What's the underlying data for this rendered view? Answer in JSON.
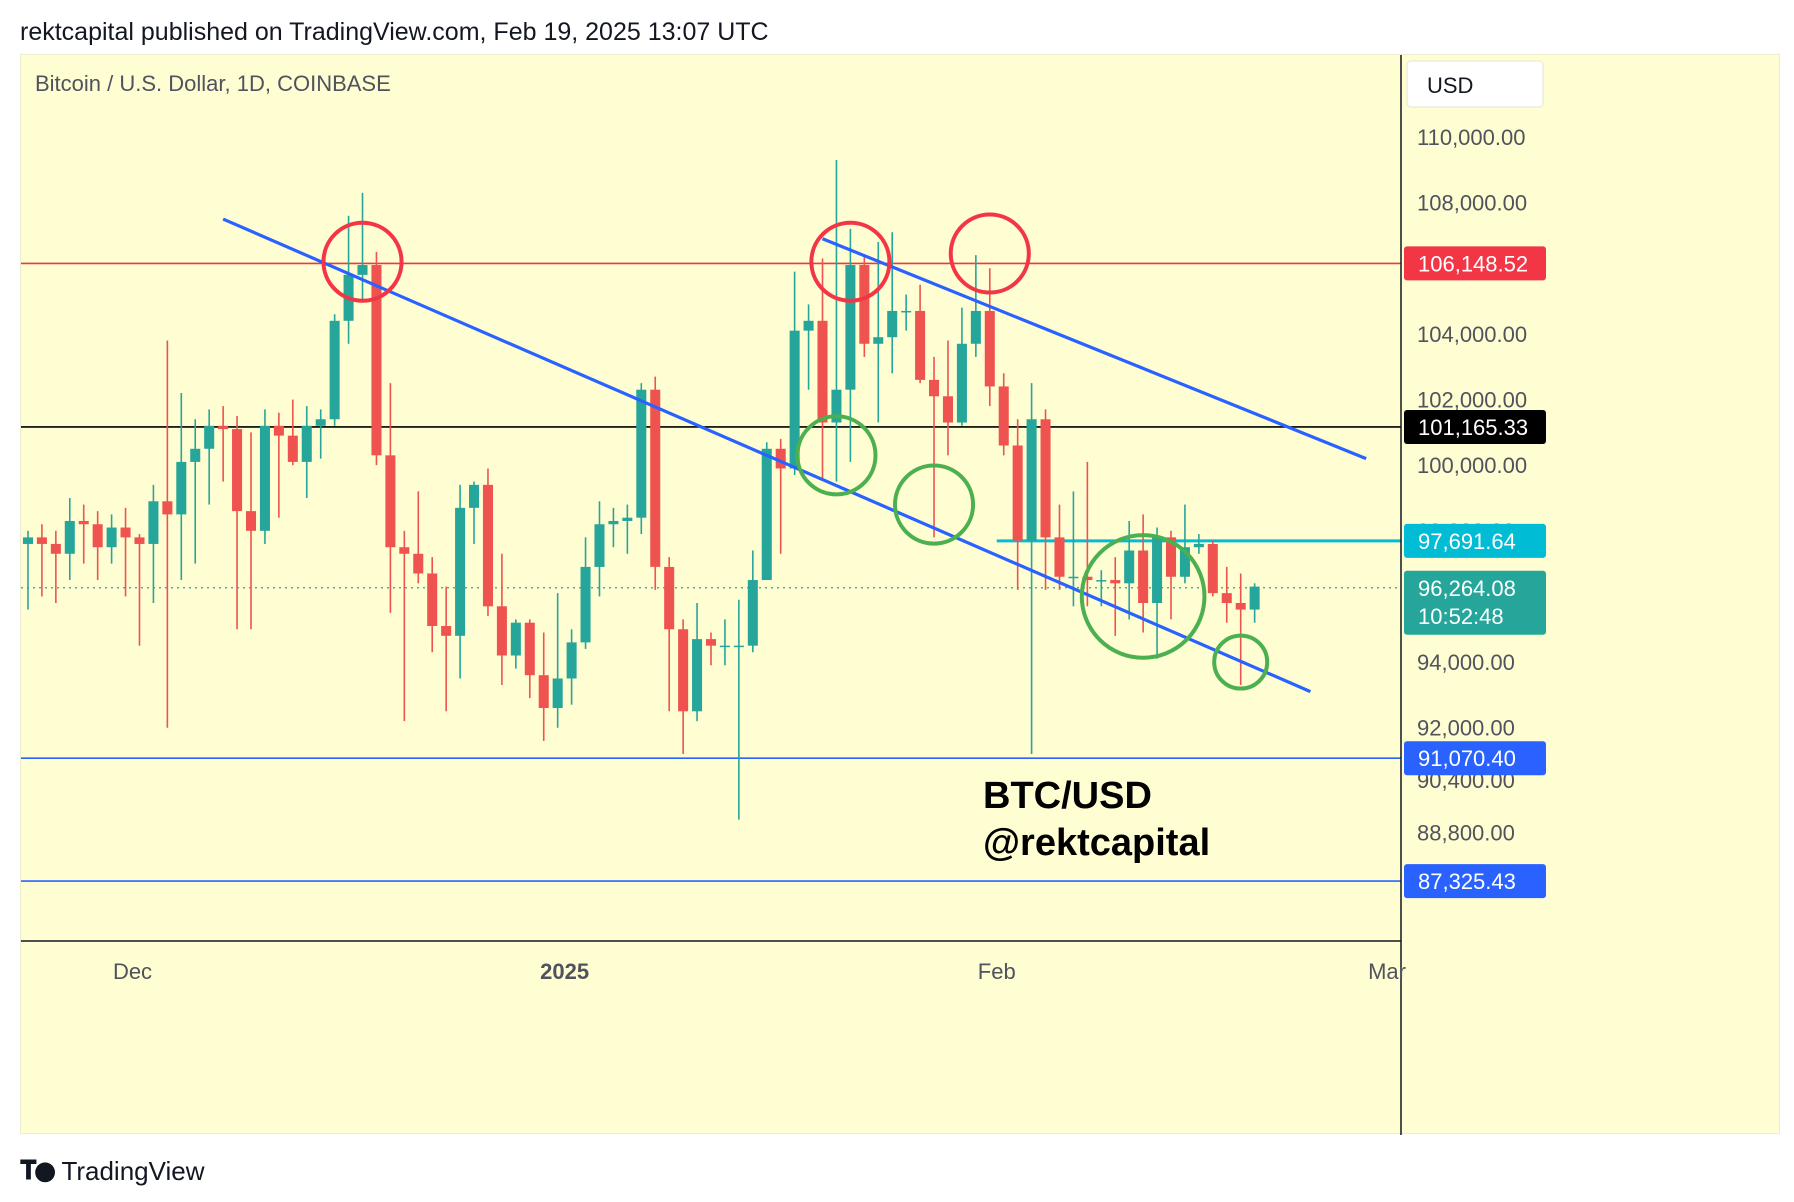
{
  "published_line": "rektcapital published on TradingView.com, Feb 19, 2025 13:07 UTC",
  "footer": {
    "brand": "TradingView",
    "logo_icon": "tradingview-logo-icon"
  },
  "colors": {
    "background": "#fffdd2",
    "bull": "#26a69a",
    "bear": "#ef5350",
    "trendline": "#2962ff",
    "resistance": "#f23645",
    "support_mid": "#000000",
    "cyan_level": "#00bcd4",
    "blue_level": "#2962ff",
    "circle_red": "#f23645",
    "circle_green": "#4caf50"
  },
  "chart_data": {
    "type": "candlestick",
    "title": "Bitcoin / U.S. Dollar, 1D, COINBASE",
    "currency_button": "USD",
    "watermark": [
      "BTC/USD",
      "@rektcapital"
    ],
    "y_axis": {
      "range": [
        85500,
        112500
      ],
      "ticks": [
        {
          "value": 110000,
          "label": "110,000.00"
        },
        {
          "value": 108000,
          "label": "108,000.00"
        },
        {
          "value": 104000,
          "label": "104,000.00"
        },
        {
          "value": 102000,
          "label": "102,000.00"
        },
        {
          "value": 100000,
          "label": "100,000.00"
        },
        {
          "value": 94000,
          "label": "94,000.00"
        },
        {
          "value": 92000,
          "label": "92,000.00"
        },
        {
          "value": 90400,
          "label": "90,400.00"
        },
        {
          "value": 88800,
          "label": "88,800.00"
        }
      ],
      "partial_tick": {
        "value": 98000,
        "label": "98,000.00"
      }
    },
    "x_axis": {
      "range": [
        "2024-11-23",
        "2025-03-02"
      ],
      "labels": [
        {
          "date": "2024-12-01",
          "label": "Dec",
          "bold": false
        },
        {
          "date": "2025-01-01",
          "label": "2025",
          "bold": true
        },
        {
          "date": "2025-02-01",
          "label": "Feb",
          "bold": false
        },
        {
          "date": "2025-03-01",
          "label": "Mar",
          "bold": false
        }
      ]
    },
    "price_labels": [
      {
        "value": 106148.52,
        "label": "106,148.52",
        "color": "#f23645"
      },
      {
        "value": 101165.33,
        "label": "101,165.33",
        "color": "#000000"
      },
      {
        "value": 97691.64,
        "label": "97,691.64",
        "color": "#00bcd4"
      },
      {
        "value": 91070.4,
        "label": "91,070.40",
        "color": "#2962ff"
      },
      {
        "value": 87325.43,
        "label": "87,325.43",
        "color": "#2962ff"
      }
    ],
    "last_price": {
      "value": 96264.08,
      "label": "96,264.08",
      "countdown": "10:52:48",
      "color": "#26a69a"
    },
    "horizontal_lines": [
      {
        "value": 106148.52,
        "color": "#f23645",
        "from": "2024-11-23"
      },
      {
        "value": 101165.33,
        "color": "#000000",
        "from": "2024-11-23"
      },
      {
        "value": 97691.64,
        "color": "#00bcd4",
        "from": "2025-02-01"
      },
      {
        "value": 91070.4,
        "color": "#2962ff",
        "from": "2024-11-23"
      },
      {
        "value": 87325.43,
        "color": "#2962ff",
        "from": "2024-11-23"
      }
    ],
    "trendlines": [
      {
        "from": {
          "date": "2024-12-07",
          "price": 107500
        },
        "to": {
          "date": "2025-02-23",
          "price": 93100
        }
      },
      {
        "from": {
          "date": "2025-01-19",
          "price": 106900
        },
        "to": {
          "date": "2025-02-27",
          "price": 100200
        }
      }
    ],
    "circles": [
      {
        "date": "2024-12-17",
        "price": 106200,
        "radius_days": 2.8,
        "color": "red"
      },
      {
        "date": "2025-01-21",
        "price": 106200,
        "radius_days": 2.8,
        "color": "red"
      },
      {
        "date": "2025-01-31",
        "price": 106450,
        "radius_days": 2.8,
        "color": "red"
      },
      {
        "date": "2025-01-20",
        "price": 100300,
        "radius_days": 2.8,
        "color": "green"
      },
      {
        "date": "2025-01-27",
        "price": 98800,
        "radius_days": 2.8,
        "color": "green"
      },
      {
        "date": "2025-02-11",
        "price": 96000,
        "radius_days": 4.4,
        "color": "green"
      },
      {
        "date": "2025-02-18",
        "price": 94000,
        "radius_days": 1.9,
        "color": "green"
      }
    ],
    "candles": [
      {
        "date": "2024-11-23",
        "o": 97600,
        "h": 98000,
        "l": 95600,
        "c": 97800
      },
      {
        "date": "2024-11-24",
        "o": 97800,
        "h": 98200,
        "l": 96000,
        "c": 97600
      },
      {
        "date": "2024-11-25",
        "o": 97600,
        "h": 98000,
        "l": 95800,
        "c": 97300
      },
      {
        "date": "2024-11-26",
        "o": 97300,
        "h": 99000,
        "l": 96500,
        "c": 98300
      },
      {
        "date": "2024-11-27",
        "o": 98300,
        "h": 98800,
        "l": 97000,
        "c": 98200
      },
      {
        "date": "2024-11-28",
        "o": 98200,
        "h": 98600,
        "l": 96500,
        "c": 97500
      },
      {
        "date": "2024-11-29",
        "o": 97500,
        "h": 98500,
        "l": 97000,
        "c": 98100
      },
      {
        "date": "2024-11-30",
        "o": 98100,
        "h": 98700,
        "l": 96000,
        "c": 97800
      },
      {
        "date": "2024-12-01",
        "o": 97800,
        "h": 97900,
        "l": 94500,
        "c": 97600
      },
      {
        "date": "2024-12-02",
        "o": 97600,
        "h": 99400,
        "l": 95800,
        "c": 98900
      },
      {
        "date": "2024-12-03",
        "o": 98900,
        "h": 103800,
        "l": 92000,
        "c": 98500
      },
      {
        "date": "2024-12-04",
        "o": 98500,
        "h": 102200,
        "l": 96500,
        "c": 100100
      },
      {
        "date": "2024-12-05",
        "o": 100100,
        "h": 101400,
        "l": 97000,
        "c": 100500
      },
      {
        "date": "2024-12-06",
        "o": 100500,
        "h": 101700,
        "l": 98800,
        "c": 101200
      },
      {
        "date": "2024-12-07",
        "o": 101200,
        "h": 101800,
        "l": 99500,
        "c": 101100
      },
      {
        "date": "2024-12-08",
        "o": 101100,
        "h": 101500,
        "l": 95000,
        "c": 98600
      },
      {
        "date": "2024-12-09",
        "o": 98600,
        "h": 101000,
        "l": 95000,
        "c": 98000
      },
      {
        "date": "2024-12-10",
        "o": 98000,
        "h": 101700,
        "l": 97600,
        "c": 101200
      },
      {
        "date": "2024-12-11",
        "o": 101200,
        "h": 101600,
        "l": 98400,
        "c": 100900
      },
      {
        "date": "2024-12-12",
        "o": 100900,
        "h": 102000,
        "l": 100000,
        "c": 100100
      },
      {
        "date": "2024-12-13",
        "o": 100100,
        "h": 101800,
        "l": 99000,
        "c": 101200
      },
      {
        "date": "2024-12-14",
        "o": 101200,
        "h": 101700,
        "l": 100200,
        "c": 101400
      },
      {
        "date": "2024-12-15",
        "o": 101400,
        "h": 104600,
        "l": 101200,
        "c": 104400
      },
      {
        "date": "2024-12-16",
        "o": 104400,
        "h": 107600,
        "l": 103700,
        "c": 105800
      },
      {
        "date": "2024-12-17",
        "o": 105800,
        "h": 108300,
        "l": 105000,
        "c": 106100
      },
      {
        "date": "2024-12-18",
        "o": 106100,
        "h": 106500,
        "l": 100000,
        "c": 100300
      },
      {
        "date": "2024-12-19",
        "o": 100300,
        "h": 102500,
        "l": 95500,
        "c": 97500
      },
      {
        "date": "2024-12-20",
        "o": 97500,
        "h": 98000,
        "l": 92200,
        "c": 97300
      },
      {
        "date": "2024-12-21",
        "o": 97300,
        "h": 99200,
        "l": 96400,
        "c": 96700
      },
      {
        "date": "2024-12-22",
        "o": 96700,
        "h": 97200,
        "l": 94300,
        "c": 95100
      },
      {
        "date": "2024-12-23",
        "o": 95100,
        "h": 96300,
        "l": 92500,
        "c": 94800
      },
      {
        "date": "2024-12-24",
        "o": 94800,
        "h": 99400,
        "l": 93500,
        "c": 98700
      },
      {
        "date": "2024-12-25",
        "o": 98700,
        "h": 99500,
        "l": 97600,
        "c": 99400
      },
      {
        "date": "2024-12-26",
        "o": 99400,
        "h": 99900,
        "l": 95400,
        "c": 95700
      },
      {
        "date": "2024-12-27",
        "o": 95700,
        "h": 97300,
        "l": 93300,
        "c": 94200
      },
      {
        "date": "2024-12-28",
        "o": 94200,
        "h": 95300,
        "l": 93800,
        "c": 95200
      },
      {
        "date": "2024-12-29",
        "o": 95200,
        "h": 95300,
        "l": 92900,
        "c": 93600
      },
      {
        "date": "2024-12-30",
        "o": 93600,
        "h": 94900,
        "l": 91600,
        "c": 92600
      },
      {
        "date": "2024-12-31",
        "o": 92600,
        "h": 96100,
        "l": 92000,
        "c": 93500
      },
      {
        "date": "2025-01-01",
        "o": 93500,
        "h": 95000,
        "l": 92700,
        "c": 94600
      },
      {
        "date": "2025-01-02",
        "o": 94600,
        "h": 97800,
        "l": 94400,
        "c": 96900
      },
      {
        "date": "2025-01-03",
        "o": 96900,
        "h": 98900,
        "l": 96000,
        "c": 98200
      },
      {
        "date": "2025-01-04",
        "o": 98200,
        "h": 98700,
        "l": 97500,
        "c": 98300
      },
      {
        "date": "2025-01-05",
        "o": 98300,
        "h": 98800,
        "l": 97300,
        "c": 98400
      },
      {
        "date": "2025-01-06",
        "o": 98400,
        "h": 102500,
        "l": 97900,
        "c": 102300
      },
      {
        "date": "2025-01-07",
        "o": 102300,
        "h": 102700,
        "l": 96200,
        "c": 96900
      },
      {
        "date": "2025-01-08",
        "o": 96900,
        "h": 97200,
        "l": 92500,
        "c": 95000
      },
      {
        "date": "2025-01-09",
        "o": 95000,
        "h": 95300,
        "l": 91200,
        "c": 92500
      },
      {
        "date": "2025-01-10",
        "o": 92500,
        "h": 95800,
        "l": 92200,
        "c": 94700
      },
      {
        "date": "2025-01-11",
        "o": 94700,
        "h": 94900,
        "l": 93900,
        "c": 94500
      },
      {
        "date": "2025-01-12",
        "o": 94500,
        "h": 95300,
        "l": 93900,
        "c": 94500
      },
      {
        "date": "2025-01-13",
        "o": 94500,
        "h": 95900,
        "l": 89200,
        "c": 94500
      },
      {
        "date": "2025-01-14",
        "o": 94500,
        "h": 97400,
        "l": 94300,
        "c": 96500
      },
      {
        "date": "2025-01-15",
        "o": 96500,
        "h": 100700,
        "l": 96500,
        "c": 100500
      },
      {
        "date": "2025-01-16",
        "o": 100500,
        "h": 100800,
        "l": 97300,
        "c": 99900
      },
      {
        "date": "2025-01-17",
        "o": 99900,
        "h": 105900,
        "l": 99700,
        "c": 104100
      },
      {
        "date": "2025-01-18",
        "o": 104100,
        "h": 104900,
        "l": 102300,
        "c": 104400
      },
      {
        "date": "2025-01-19",
        "o": 104400,
        "h": 106300,
        "l": 99600,
        "c": 101300
      },
      {
        "date": "2025-01-20",
        "o": 101300,
        "h": 109300,
        "l": 99500,
        "c": 102300
      },
      {
        "date": "2025-01-21",
        "o": 102300,
        "h": 107200,
        "l": 100100,
        "c": 106100
      },
      {
        "date": "2025-01-22",
        "o": 106100,
        "h": 106400,
        "l": 103300,
        "c": 103700
      },
      {
        "date": "2025-01-23",
        "o": 103700,
        "h": 106800,
        "l": 101300,
        "c": 103900
      },
      {
        "date": "2025-01-24",
        "o": 103900,
        "h": 107100,
        "l": 102800,
        "c": 104700
      },
      {
        "date": "2025-01-25",
        "o": 104700,
        "h": 105200,
        "l": 104100,
        "c": 104700
      },
      {
        "date": "2025-01-26",
        "o": 104700,
        "h": 105500,
        "l": 102500,
        "c": 102600
      },
      {
        "date": "2025-01-27",
        "o": 102600,
        "h": 103300,
        "l": 97800,
        "c": 102100
      },
      {
        "date": "2025-01-28",
        "o": 102100,
        "h": 103800,
        "l": 100300,
        "c": 101300
      },
      {
        "date": "2025-01-29",
        "o": 101300,
        "h": 104800,
        "l": 101200,
        "c": 103700
      },
      {
        "date": "2025-01-30",
        "o": 103700,
        "h": 106400,
        "l": 103300,
        "c": 104700
      },
      {
        "date": "2025-01-31",
        "o": 104700,
        "h": 106000,
        "l": 101800,
        "c": 102400
      },
      {
        "date": "2025-02-01",
        "o": 102400,
        "h": 102800,
        "l": 100300,
        "c": 100600
      },
      {
        "date": "2025-02-02",
        "o": 100600,
        "h": 101400,
        "l": 96200,
        "c": 97700
      },
      {
        "date": "2025-02-03",
        "o": 97700,
        "h": 102500,
        "l": 91200,
        "c": 101400
      },
      {
        "date": "2025-02-04",
        "o": 101400,
        "h": 101700,
        "l": 96200,
        "c": 97800
      },
      {
        "date": "2025-02-05",
        "o": 97800,
        "h": 98800,
        "l": 96200,
        "c": 96600
      },
      {
        "date": "2025-02-06",
        "o": 96600,
        "h": 99200,
        "l": 95700,
        "c": 96600
      },
      {
        "date": "2025-02-07",
        "o": 96600,
        "h": 100100,
        "l": 95700,
        "c": 96500
      },
      {
        "date": "2025-02-08",
        "o": 96500,
        "h": 96800,
        "l": 95700,
        "c": 96500
      },
      {
        "date": "2025-02-09",
        "o": 96500,
        "h": 97200,
        "l": 94800,
        "c": 96400
      },
      {
        "date": "2025-02-10",
        "o": 96400,
        "h": 98300,
        "l": 95300,
        "c": 97400
      },
      {
        "date": "2025-02-11",
        "o": 97400,
        "h": 98500,
        "l": 94900,
        "c": 95800
      },
      {
        "date": "2025-02-12",
        "o": 95800,
        "h": 98100,
        "l": 94100,
        "c": 97800
      },
      {
        "date": "2025-02-13",
        "o": 97800,
        "h": 98000,
        "l": 95300,
        "c": 96600
      },
      {
        "date": "2025-02-14",
        "o": 96600,
        "h": 98800,
        "l": 96400,
        "c": 97500
      },
      {
        "date": "2025-02-15",
        "o": 97500,
        "h": 97900,
        "l": 97300,
        "c": 97600
      },
      {
        "date": "2025-02-16",
        "o": 97600,
        "h": 97700,
        "l": 96000,
        "c": 96100
      },
      {
        "date": "2025-02-17",
        "o": 96100,
        "h": 96900,
        "l": 95200,
        "c": 95800
      },
      {
        "date": "2025-02-18",
        "o": 95800,
        "h": 96700,
        "l": 93300,
        "c": 95600
      },
      {
        "date": "2025-02-19",
        "o": 95600,
        "h": 96400,
        "l": 95200,
        "c": 96300
      }
    ]
  }
}
